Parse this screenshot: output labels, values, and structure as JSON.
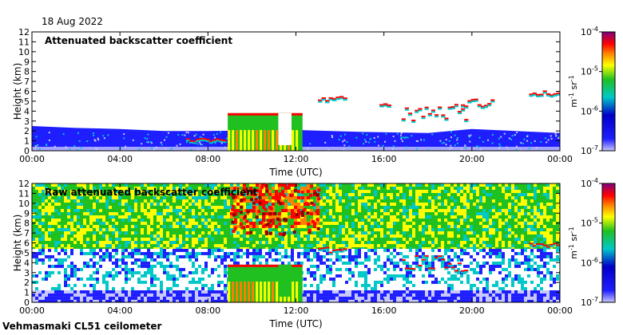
{
  "date": "18 Aug 2022",
  "station": "Vehmasmaki CL51 ceilometer",
  "colors": {
    "white": "#ffffff",
    "lavender": "#c8c8ff",
    "blue": "#1e1eff",
    "deep_blue": "#0000c8",
    "cyan": "#00c8c8",
    "green": "#20c020",
    "yellow": "#ffff00",
    "orange": "#ff8000",
    "red": "#ff0000",
    "maroon": "#900000",
    "purple": "#800080"
  },
  "chart_data": [
    {
      "type": "heatmap",
      "title": "Attenuated backscatter coefficient",
      "xlabel": "Time (UTC)",
      "ylabel": "Height (km)",
      "x_ticks": [
        "00:00",
        "04:00",
        "08:00",
        "12:00",
        "16:00",
        "20:00",
        "00:00"
      ],
      "y_ticks": [
        "0",
        "1",
        "2",
        "3",
        "4",
        "5",
        "6",
        "7",
        "8",
        "9",
        "10",
        "11",
        "12"
      ],
      "xlim_hours": [
        0,
        24
      ],
      "ylim_km": [
        0,
        12
      ],
      "colorbar": {
        "unit": "m-1 sr-1",
        "unit_parts": [
          "m",
          "-1",
          " sr",
          "-1"
        ],
        "scale": "log",
        "range": [
          1e-07,
          0.0001
        ],
        "ticks": [
          {
            "mantissa": "10",
            "exp": "-4",
            "value": 0.0001
          },
          {
            "mantissa": "10",
            "exp": "-5",
            "value": 1e-05
          },
          {
            "mantissa": "10",
            "exp": "-6",
            "value": 1e-06
          },
          {
            "mantissa": "10",
            "exp": "-7",
            "value": 1e-07
          }
        ]
      },
      "boundary_layer": [
        [
          0,
          2.5
        ],
        [
          2,
          2.3
        ],
        [
          4,
          2.2
        ],
        [
          6,
          2.0
        ],
        [
          8,
          2.0
        ],
        [
          12,
          2.1
        ],
        [
          15,
          1.9
        ],
        [
          18,
          1.8
        ],
        [
          20,
          2.2
        ],
        [
          22,
          2.0
        ],
        [
          24,
          1.8
        ]
      ],
      "features": [
        {
          "name": "thick-cloud",
          "t_start": 8.9,
          "t_end": 12.3,
          "h_base": 0.0,
          "h_top": 3.8,
          "level": "high"
        },
        {
          "name": "cloud-layer-early",
          "t_start": 7.0,
          "t_end": 8.8,
          "h_base": 1.0,
          "h_top": 1.3,
          "level": "mid"
        },
        {
          "name": "cloud-layer-1330",
          "t_start": 13.0,
          "t_end": 14.3,
          "h_base": 5.1,
          "h_top": 5.6,
          "level": "mid"
        },
        {
          "name": "cloud-layer-1600",
          "t_start": 15.8,
          "t_end": 16.3,
          "h_base": 4.6,
          "h_top": 4.8,
          "level": "mid"
        },
        {
          "name": "cloud-layer-1700",
          "t_start": 16.8,
          "t_end": 19.8,
          "h_base": 3.1,
          "h_top": 4.8,
          "level": "mid"
        },
        {
          "name": "cloud-layer-2000",
          "t_start": 19.5,
          "t_end": 21.0,
          "h_base": 4.5,
          "h_top": 5.4,
          "level": "mid"
        },
        {
          "name": "cloud-layer-2300",
          "t_start": 22.6,
          "t_end": 24.0,
          "h_base": 5.6,
          "h_top": 6.1,
          "level": "mid"
        }
      ]
    },
    {
      "type": "heatmap",
      "title": "Raw attenuated backscatter coefficient",
      "xlabel": "Time (UTC)",
      "ylabel": "Height (km)",
      "x_ticks": [
        "00:00",
        "04:00",
        "08:00",
        "12:00",
        "16:00",
        "20:00",
        "00:00"
      ],
      "y_ticks": [
        "0",
        "1",
        "2",
        "3",
        "4",
        "5",
        "6",
        "7",
        "8",
        "9",
        "10",
        "11",
        "12"
      ],
      "xlim_hours": [
        0,
        24
      ],
      "ylim_km": [
        0,
        12
      ],
      "colorbar": {
        "unit": "m-1 sr-1",
        "unit_parts": [
          "m",
          "-1",
          " sr",
          "-1"
        ],
        "scale": "log",
        "range": [
          1e-07,
          0.0001
        ],
        "ticks": [
          {
            "mantissa": "10",
            "exp": "-4",
            "value": 0.0001
          },
          {
            "mantissa": "10",
            "exp": "-5",
            "value": 1e-05
          },
          {
            "mantissa": "10",
            "exp": "-6",
            "value": 1e-06
          },
          {
            "mantissa": "10",
            "exp": "-7",
            "value": 1e-07
          }
        ]
      },
      "features": [
        {
          "name": "thick-cloud",
          "t_start": 8.9,
          "t_end": 12.3,
          "h_base": 0.0,
          "h_top": 3.8,
          "level": "high"
        },
        {
          "name": "noise-maximum",
          "t_start": 9.0,
          "t_end": 13.0,
          "h_base": 7.0,
          "h_top": 12.0,
          "level": "noise-high"
        },
        {
          "name": "cloud-layer-1330",
          "t_start": 13.0,
          "t_end": 14.3,
          "h_base": 5.1,
          "h_top": 5.6,
          "level": "mid"
        },
        {
          "name": "cloud-layer-1700",
          "t_start": 16.8,
          "t_end": 19.8,
          "h_base": 3.1,
          "h_top": 4.8,
          "level": "mid"
        },
        {
          "name": "cloud-layer-2300",
          "t_start": 22.6,
          "t_end": 24.0,
          "h_base": 5.6,
          "h_top": 6.1,
          "level": "mid"
        }
      ]
    }
  ]
}
